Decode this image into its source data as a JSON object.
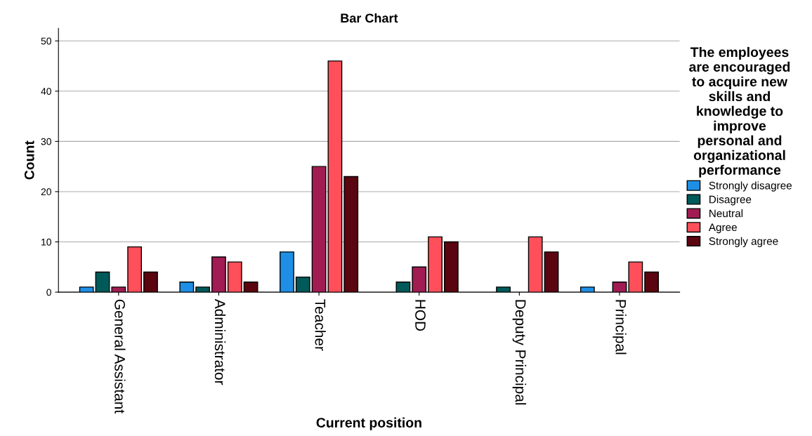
{
  "chart_data": {
    "type": "bar",
    "title": "Bar Chart",
    "xlabel": "Current position",
    "ylabel": "Count",
    "legend_title": "The employees are encouraged to acquire new skills and knowledge to improve personal and organizational performance",
    "categories": [
      "General Assistant",
      "Administrator",
      "Teacher",
      "HOD",
      "Deputy Principal",
      "Principal"
    ],
    "series": [
      {
        "name": "Strongly disagree",
        "color": "#1f8fe5",
        "values": [
          1,
          2,
          8,
          null,
          null,
          1
        ]
      },
      {
        "name": "Disagree",
        "color": "#005a5a",
        "values": [
          4,
          1,
          3,
          2,
          1,
          null
        ]
      },
      {
        "name": "Neutral",
        "color": "#a01c52",
        "values": [
          1,
          7,
          25,
          5,
          null,
          2
        ]
      },
      {
        "name": "Agree",
        "color": "#ff4f5a",
        "values": [
          9,
          6,
          46,
          11,
          11,
          6
        ]
      },
      {
        "name": "Strongly agree",
        "color": "#5a0510",
        "values": [
          4,
          2,
          23,
          10,
          8,
          4
        ]
      }
    ],
    "ylim": [
      0,
      52.5
    ],
    "yticks": [
      0,
      10,
      20,
      30,
      40,
      50
    ],
    "grid": "y",
    "legend": "right"
  }
}
